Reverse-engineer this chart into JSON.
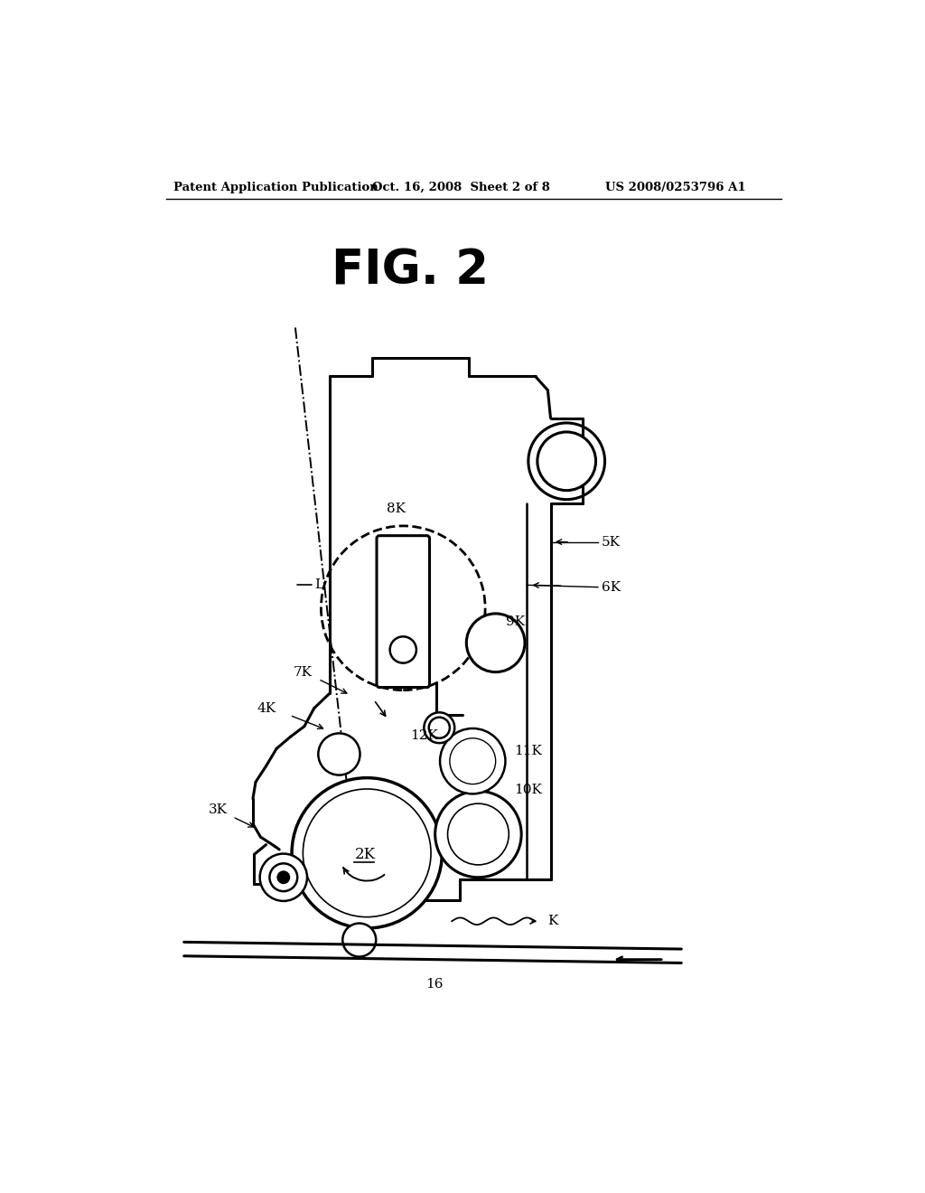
{
  "title": "FIG. 2",
  "header_left": "Patent Application Publication",
  "header_center": "Oct. 16, 2008  Sheet 2 of 8",
  "header_right": "US 2008/0253796 A1",
  "bg_color": "#ffffff",
  "line_color": "#000000"
}
